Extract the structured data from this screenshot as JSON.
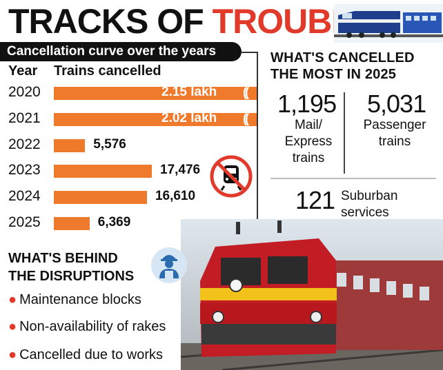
{
  "title": {
    "part1": "TRACKS OF",
    "part2": "TROUBLE"
  },
  "curve": {
    "heading": "Cancellation curve over the years",
    "col_year": "Year",
    "col_trains": "Trains cancelled"
  },
  "chart_data": {
    "type": "bar",
    "orientation": "horizontal",
    "title": "Cancellation curve over the years",
    "categories": [
      "2020",
      "2021",
      "2022",
      "2023",
      "2024",
      "2025"
    ],
    "values": [
      215000,
      202000,
      5576,
      17476,
      16610,
      6369
    ],
    "value_labels": [
      "2.15 lakh",
      "2.02 lakh",
      "5,576",
      "17,476",
      "16,610",
      "6,369"
    ],
    "xlabel": "Trains cancelled",
    "ylabel": "Year",
    "axis_break": true
  },
  "most_cancelled": {
    "heading_line1": "WHAT'S CANCELLED",
    "heading_line2": "THE MOST IN 2025",
    "mail_express": {
      "value": "1,195",
      "label_line1": "Mail/",
      "label_line2": "Express",
      "label_line3": "trains"
    },
    "passenger": {
      "value": "5,031",
      "label_line1": "Passenger",
      "label_line2": "trains"
    },
    "suburban": {
      "value": "121",
      "label_line1": "Suburban",
      "label_line2": "services"
    }
  },
  "disruptions": {
    "heading_line1": "WHAT'S BEHIND",
    "heading_line2": "THE DISRUPTIONS",
    "items": [
      "Maintenance blocks",
      "Non-availability of rakes",
      "Cancelled due to works"
    ]
  },
  "colors": {
    "bar": "#f07a2b",
    "accent_red": "#e23a2a",
    "dark": "#111111"
  },
  "icons": [
    "top-train-icon",
    "no-train-icon",
    "worker-icon",
    "locomotive-icon"
  ]
}
